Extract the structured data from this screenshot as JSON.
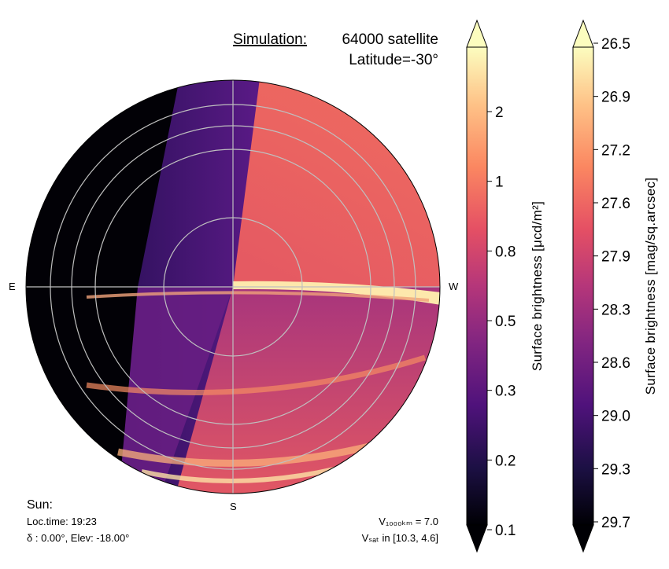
{
  "chart_data": {
    "type": "heatmap",
    "projection": "polar sky map (all-sky dome)",
    "title_prefix": "Simulation:",
    "title": "64000 satellite",
    "subtitle": "Latitude=-30°",
    "compass": {
      "east": "E",
      "west": "W",
      "south": "S"
    },
    "sun_info": {
      "header": "Sun:",
      "loc_time": "Loc.time: 19:23",
      "delta_elev": "δ : 0.00°, Elev: -18.00°"
    },
    "satellite_info": {
      "v1000": "V₁₀₀₀ₖₘ = 7.0",
      "vsat": "Vₛₐₜ in [10.3, 4.6]"
    },
    "colorbars": [
      {
        "label": "Surface brightness [μcd/m²]",
        "ticks": [
          "2",
          "1",
          "0.8",
          "0.5",
          "0.3",
          "0.2",
          "0.1"
        ],
        "tick_values": [
          2,
          1,
          0.8,
          0.5,
          0.3,
          0.2,
          0.1
        ],
        "colormap": "magma",
        "extend": "both"
      },
      {
        "label": "Surface brightness [mag/sq.arcsec]",
        "ticks": [
          "26.5",
          "26.9",
          "27.2",
          "27.6",
          "27.9",
          "28.3",
          "28.6",
          "29.0",
          "29.3",
          "29.7"
        ],
        "tick_values": [
          26.5,
          26.9,
          27.2,
          27.6,
          27.9,
          28.3,
          28.6,
          29.0,
          29.3,
          29.7
        ],
        "colormap": "magma",
        "extend": "both"
      }
    ],
    "grid": true,
    "altitude_rings": 4,
    "regions": [
      {
        "name": "earth-shadow",
        "level": 0.1
      },
      {
        "name": "penumbra",
        "level": 0.25
      },
      {
        "name": "lit-northern",
        "level": 0.85
      },
      {
        "name": "below-horizon-lit",
        "level": 0.5
      },
      {
        "name": "horizon-glow",
        "level": 2.0
      }
    ],
    "colors": {
      "magma": [
        "#000004",
        "#1c1044",
        "#4f127b",
        "#812581",
        "#b5367a",
        "#e55064",
        "#fb8761",
        "#fec287",
        "#fcfdbf"
      ],
      "grid": "#bfbfbf"
    }
  }
}
